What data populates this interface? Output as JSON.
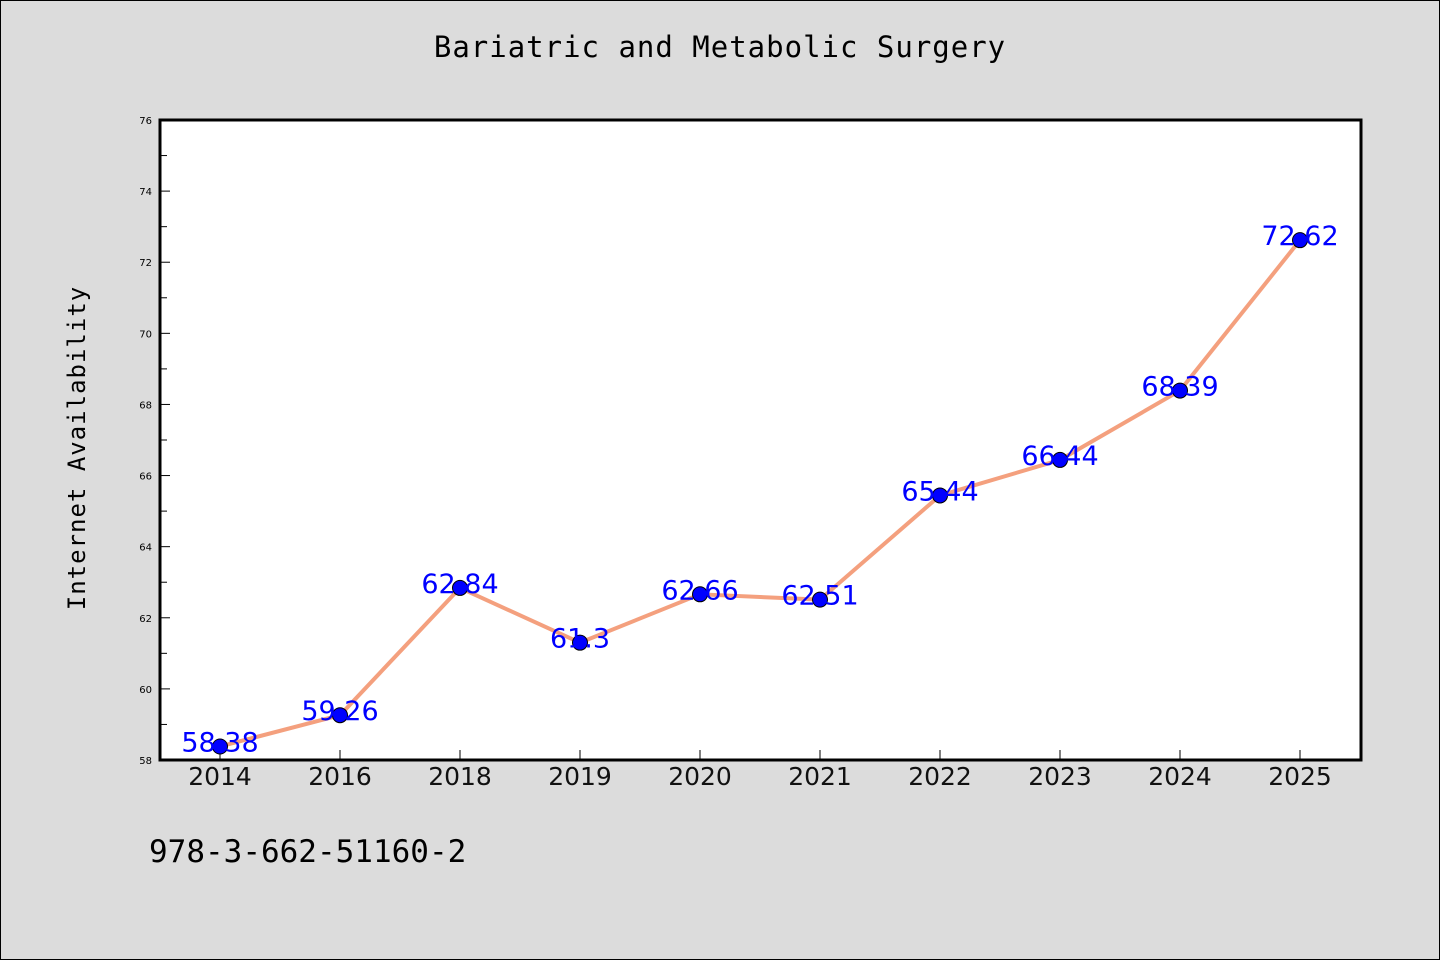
{
  "chart_data": {
    "type": "line",
    "title": "Bariatric and Metabolic Surgery",
    "xlabel": "",
    "ylabel": "Internet Availability",
    "categories": [
      "2014",
      "2016",
      "2018",
      "2019",
      "2020",
      "2021",
      "2022",
      "2023",
      "2024",
      "2025"
    ],
    "values": [
      58.38,
      59.26,
      62.84,
      61.3,
      62.66,
      62.51,
      65.44,
      66.44,
      68.39,
      72.62
    ],
    "data_labels": [
      "58.38",
      "59.26",
      "62.84",
      "61.3",
      "62.66",
      "62.51",
      "65.44",
      "66.44",
      "68.39",
      "72.62"
    ],
    "ylim": [
      58,
      76
    ],
    "yticks": [
      "58",
      "60",
      "62",
      "64",
      "66",
      "68",
      "70",
      "72",
      "74",
      "76"
    ],
    "grid": false,
    "legend": "none",
    "colors": {
      "line": "#f4a07e",
      "marker": "#0000ff",
      "data_label": "#0000ff",
      "background": "#dcdcdc",
      "plot_background": "#ffffff"
    }
  },
  "footer": {
    "text": "978-3-662-51160-2"
  }
}
